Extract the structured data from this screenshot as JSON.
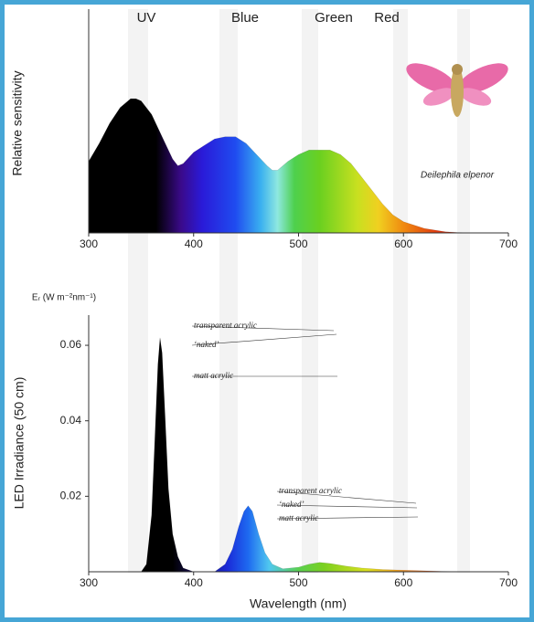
{
  "chart_data": [
    {
      "type": "area",
      "band_labels": [
        "UV",
        "Blue",
        "Green",
        "Red"
      ],
      "ylabel": "Relative sensitivity",
      "species": "Deilephila elpenor",
      "x": [
        300,
        310,
        320,
        330,
        340,
        345,
        350,
        360,
        370,
        380,
        385,
        390,
        400,
        410,
        420,
        430,
        440,
        450,
        460,
        470,
        475,
        480,
        490,
        500,
        510,
        520,
        530,
        540,
        550,
        560,
        570,
        580,
        590,
        600,
        620,
        640,
        660
      ],
      "values": [
        0.32,
        0.4,
        0.49,
        0.56,
        0.6,
        0.6,
        0.59,
        0.53,
        0.43,
        0.33,
        0.3,
        0.31,
        0.36,
        0.39,
        0.42,
        0.43,
        0.43,
        0.4,
        0.35,
        0.3,
        0.28,
        0.28,
        0.32,
        0.35,
        0.37,
        0.37,
        0.37,
        0.35,
        0.31,
        0.25,
        0.19,
        0.13,
        0.08,
        0.05,
        0.02,
        0.005,
        0
      ],
      "xlim": [
        300,
        700
      ],
      "xticks": [
        300,
        400,
        500,
        600,
        700
      ],
      "ylim": [
        0,
        1
      ]
    },
    {
      "type": "area",
      "unit_label": "Eᵣ (W m⁻²nm⁻¹)",
      "ylabel": "LED Irradiance (50 cm)",
      "xlabel": "Wavelength (nm)",
      "annotations": [
        "transparent acrylic",
        "‘naked’",
        "matt acrylic",
        "transparent acrylic",
        "‘naked’",
        "matt acrylic"
      ],
      "x": [
        350,
        355,
        360,
        363,
        366,
        368,
        370,
        373,
        376,
        380,
        385,
        390,
        400,
        420,
        430,
        437,
        443,
        448,
        452,
        456,
        462,
        468,
        475,
        485,
        500,
        510,
        520,
        530,
        545,
        560,
        580,
        600,
        640,
        650
      ],
      "values": [
        0,
        0.002,
        0.015,
        0.035,
        0.055,
        0.062,
        0.058,
        0.04,
        0.022,
        0.01,
        0.004,
        0.001,
        0,
        0,
        0.002,
        0.006,
        0.012,
        0.016,
        0.0175,
        0.016,
        0.01,
        0.005,
        0.002,
        0.0008,
        0.0012,
        0.002,
        0.0025,
        0.0022,
        0.0015,
        0.001,
        0.0006,
        0.0004,
        0.0001,
        0
      ],
      "xlim": [
        300,
        700
      ],
      "xticks": [
        300,
        400,
        500,
        600,
        700
      ],
      "ylim": [
        0,
        0.068
      ],
      "yticks": [
        0.02,
        0.04,
        0.06
      ]
    }
  ]
}
